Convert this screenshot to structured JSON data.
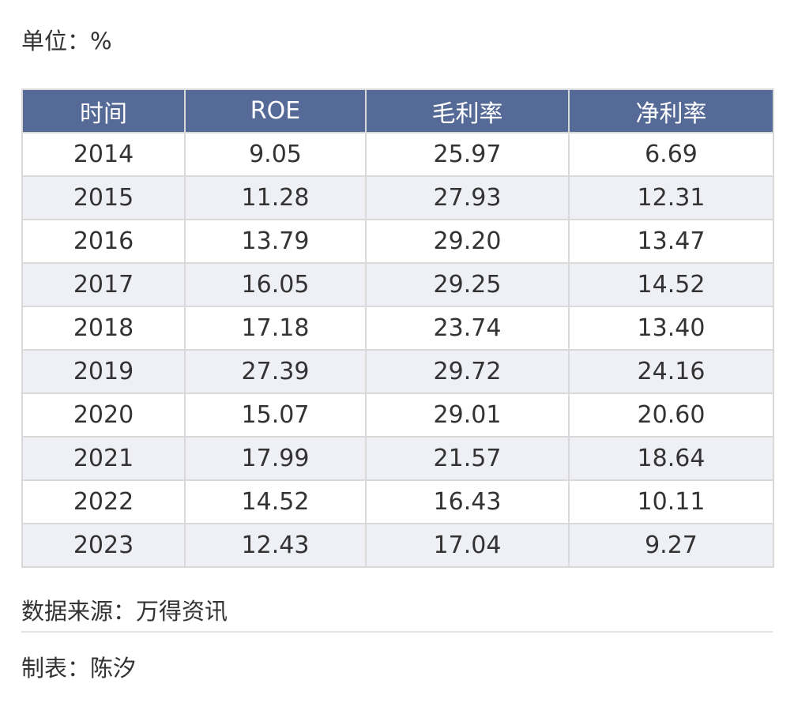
{
  "unit_label": "单位：%",
  "chart_data": {
    "type": "table",
    "columns": [
      "时间",
      "ROE",
      "毛利率",
      "净利率"
    ],
    "rows": [
      [
        "2014",
        "9.05",
        "25.97",
        "6.69"
      ],
      [
        "2015",
        "11.28",
        "27.93",
        "12.31"
      ],
      [
        "2016",
        "13.79",
        "29.20",
        "13.47"
      ],
      [
        "2017",
        "16.05",
        "29.25",
        "14.52"
      ],
      [
        "2018",
        "17.18",
        "23.74",
        "13.40"
      ],
      [
        "2019",
        "27.39",
        "29.72",
        "24.16"
      ],
      [
        "2020",
        "15.07",
        "29.01",
        "20.60"
      ],
      [
        "2021",
        "17.99",
        "21.57",
        "18.64"
      ],
      [
        "2022",
        "14.52",
        "16.43",
        "10.11"
      ],
      [
        "2023",
        "12.43",
        "17.04",
        "9.27"
      ]
    ]
  },
  "source_label": "数据来源：万得资讯",
  "maker_label": "制表：陈汐",
  "colors": {
    "header_bg": "#566a97",
    "header_text": "#ffffff",
    "stripe_bg": "#eef0f5",
    "border": "#d9d9d9"
  }
}
